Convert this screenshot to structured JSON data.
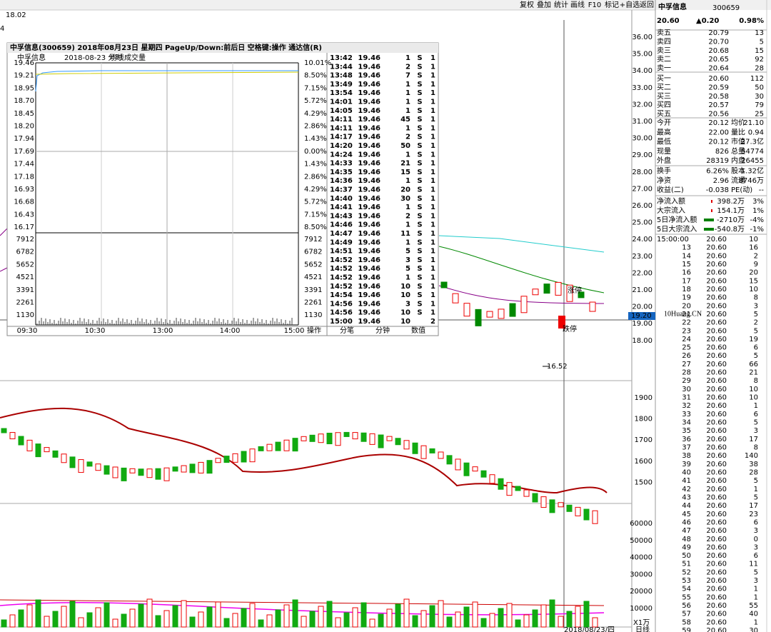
{
  "toolbar": [
    "复权",
    "叠加",
    "统计",
    "画线",
    "F10",
    "标记",
    "+自选",
    "返回"
  ],
  "top_left": {
    "price": "18.02",
    "level": "4"
  },
  "header": {
    "name": "中孚信息",
    "code": "300659",
    "price": "20.60",
    "change": "▲0.20",
    "pct": "0.98%"
  },
  "order_book": [
    [
      "卖五",
      "20.79",
      "13"
    ],
    [
      "卖四",
      "20.70",
      "5"
    ],
    [
      "卖三",
      "20.68",
      "15"
    ],
    [
      "卖二",
      "20.65",
      "92"
    ],
    [
      "卖一",
      "20.64",
      "28"
    ],
    [
      "买一",
      "20.60",
      "112"
    ],
    [
      "买二",
      "20.59",
      "50"
    ],
    [
      "买三",
      "20.58",
      "30"
    ],
    [
      "买四",
      "20.57",
      "79"
    ],
    [
      "买五",
      "20.56",
      "25"
    ]
  ],
  "stats": [
    [
      "今开",
      "20.12",
      "均价",
      "21.10"
    ],
    [
      "最高",
      "22.00",
      "量比",
      "0.94"
    ],
    [
      "最低",
      "20.12",
      "市值",
      "27.3亿"
    ],
    [
      "现量",
      "826",
      "总量",
      "54774"
    ],
    [
      "外盘",
      "28319",
      "内盘",
      "26455"
    ],
    [
      "换手",
      "6.26%",
      "股本",
      "1.32亿"
    ],
    [
      "净资",
      "2.96",
      "流通",
      "8746万"
    ],
    [
      "收益(二)",
      "-0.038",
      "PE(动)",
      "--"
    ]
  ],
  "flows": [
    [
      "净流入额",
      "398.2万",
      "3%"
    ],
    [
      "大宗流入",
      "154.1万",
      "1%"
    ],
    [
      "5日净流入额",
      "-2710万",
      "-4%"
    ],
    [
      "5日大宗流入",
      "-540.8万",
      "-1%"
    ]
  ],
  "ticks": [
    [
      "15:00:00",
      "20.60",
      "10"
    ],
    [
      "13",
      "20.60",
      "16"
    ],
    [
      "14",
      "20.60",
      "2"
    ],
    [
      "15",
      "20.60",
      "9"
    ],
    [
      "16",
      "20.60",
      "20"
    ],
    [
      "17",
      "20.60",
      "15"
    ],
    [
      "18",
      "20.60",
      "10"
    ],
    [
      "19",
      "20.60",
      "8"
    ],
    [
      "20",
      "20.60",
      "3"
    ],
    [
      "21",
      "20.60",
      "5"
    ],
    [
      "22",
      "20.60",
      "2"
    ],
    [
      "23",
      "20.60",
      "5"
    ],
    [
      "24",
      "20.60",
      "19"
    ],
    [
      "25",
      "20.60",
      "6"
    ],
    [
      "26",
      "20.60",
      "5"
    ],
    [
      "27",
      "20.60",
      "66"
    ],
    [
      "28",
      "20.60",
      "21"
    ],
    [
      "29",
      "20.60",
      "8"
    ],
    [
      "30",
      "20.60",
      "10"
    ],
    [
      "31",
      "20.60",
      "10"
    ],
    [
      "32",
      "20.60",
      "1"
    ],
    [
      "33",
      "20.60",
      "6"
    ],
    [
      "34",
      "20.60",
      "5"
    ],
    [
      "35",
      "20.60",
      "3"
    ],
    [
      "36",
      "20.60",
      "17"
    ],
    [
      "37",
      "20.60",
      "8"
    ],
    [
      "38",
      "20.60",
      "140"
    ],
    [
      "39",
      "20.60",
      "38"
    ],
    [
      "40",
      "20.60",
      "28"
    ],
    [
      "41",
      "20.60",
      "5"
    ],
    [
      "42",
      "20.60",
      "1"
    ],
    [
      "43",
      "20.60",
      "5"
    ],
    [
      "44",
      "20.60",
      "17"
    ],
    [
      "45",
      "20.60",
      "23"
    ],
    [
      "46",
      "20.60",
      "6"
    ],
    [
      "47",
      "20.60",
      "3"
    ],
    [
      "48",
      "20.60",
      "0"
    ],
    [
      "49",
      "20.60",
      "3"
    ],
    [
      "50",
      "20.60",
      "6"
    ],
    [
      "51",
      "20.60",
      "11"
    ],
    [
      "52",
      "20.60",
      "5"
    ],
    [
      "53",
      "20.60",
      "3"
    ],
    [
      "54",
      "20.60",
      "1"
    ],
    [
      "55",
      "20.60",
      "1"
    ],
    [
      "56",
      "20.60",
      "55"
    ],
    [
      "57",
      "20.60",
      "40"
    ],
    [
      "58",
      "20.60",
      "1"
    ],
    [
      "59",
      "20.60",
      "30"
    ]
  ],
  "main_axis": [
    "36.00",
    "35.00",
    "34.00",
    "33.00",
    "32.00",
    "31.00",
    "30.00",
    "29.00",
    "28.00",
    "27.00",
    "26.00",
    "25.00",
    "24.00",
    "23.00",
    "22.00",
    "21.00",
    "20.00",
    "19.00",
    "18.00"
  ],
  "cursor_price": "19.20",
  "index_axis": [
    "1900",
    "1800",
    "1700",
    "1600",
    "1500"
  ],
  "volume_axis": [
    "60000",
    "50000",
    "40000",
    "30000",
    "20000",
    "10000"
  ],
  "volume_unit": "X1万",
  "date_label": "2018/08/23/四",
  "period": "日线",
  "annotations": {
    "low": "16.52",
    "limit_up": "涨停",
    "limit_down": "跌停"
  },
  "watermark": "10Huang.CN",
  "popup": {
    "title": "中孚信息(300659)  2018年08月23日 星期四 PageUp/Down:前后日 空格键:操作 通达信(R)",
    "subtitle": [
      "中孚信息",
      "2018-08-23 分时",
      "均线",
      "成交量"
    ],
    "price_ticks": [
      "19.46",
      "19.21",
      "18.95",
      "18.70",
      "18.45",
      "18.20",
      "17.94",
      "17.69",
      "17.44",
      "17.18",
      "16.93",
      "16.68",
      "16.43",
      "16.17"
    ],
    "pct_ticks": [
      "10.01%",
      "8.50%",
      "7.15%",
      "5.72%",
      "4.29%",
      "2.86%",
      "1.43%",
      "0.00%",
      "1.43%",
      "2.86%",
      "4.29%",
      "5.72%",
      "7.15%",
      "8.50%"
    ],
    "vol_ticks": [
      "7912",
      "6782",
      "5652",
      "4521",
      "3391",
      "2261",
      "1130"
    ],
    "time_ticks": [
      "09:30",
      "10:30",
      "13:00",
      "14:00",
      "15:00"
    ],
    "trades": [
      [
        "13:42",
        "19.46",
        "1",
        "S",
        "1"
      ],
      [
        "13:44",
        "19.46",
        "2",
        "S",
        "1"
      ],
      [
        "13:48",
        "19.46",
        "7",
        "S",
        "1"
      ],
      [
        "13:49",
        "19.46",
        "1",
        "S",
        "1"
      ],
      [
        "13:54",
        "19.46",
        "1",
        "S",
        "1"
      ],
      [
        "14:01",
        "19.46",
        "1",
        "S",
        "1"
      ],
      [
        "14:05",
        "19.46",
        "1",
        "S",
        "1"
      ],
      [
        "14:11",
        "19.46",
        "45",
        "S",
        "1"
      ],
      [
        "14:11",
        "19.46",
        "1",
        "S",
        "1"
      ],
      [
        "14:17",
        "19.46",
        "2",
        "S",
        "1"
      ],
      [
        "14:20",
        "19.46",
        "50",
        "S",
        "1"
      ],
      [
        "14:24",
        "19.46",
        "1",
        "S",
        "1"
      ],
      [
        "14:33",
        "19.46",
        "21",
        "S",
        "1"
      ],
      [
        "14:35",
        "19.46",
        "15",
        "S",
        "1"
      ],
      [
        "14:36",
        "19.46",
        "1",
        "S",
        "1"
      ],
      [
        "14:37",
        "19.46",
        "20",
        "S",
        "1"
      ],
      [
        "14:40",
        "19.46",
        "30",
        "S",
        "1"
      ],
      [
        "14:41",
        "19.46",
        "1",
        "S",
        "1"
      ],
      [
        "14:43",
        "19.46",
        "2",
        "S",
        "1"
      ],
      [
        "14:46",
        "19.46",
        "1",
        "S",
        "1"
      ],
      [
        "14:47",
        "19.46",
        "11",
        "S",
        "1"
      ],
      [
        "14:49",
        "19.46",
        "1",
        "S",
        "1"
      ],
      [
        "14:51",
        "19.46",
        "5",
        "S",
        "1"
      ],
      [
        "14:52",
        "19.46",
        "3",
        "S",
        "1"
      ],
      [
        "14:52",
        "19.46",
        "5",
        "S",
        "1"
      ],
      [
        "14:52",
        "19.46",
        "1",
        "S",
        "1"
      ],
      [
        "14:52",
        "19.46",
        "10",
        "S",
        "1"
      ],
      [
        "14:54",
        "19.46",
        "10",
        "S",
        "1"
      ],
      [
        "14:56",
        "19.46",
        "3",
        "S",
        "1"
      ],
      [
        "14:56",
        "19.46",
        "10",
        "S",
        "1"
      ],
      [
        "15:00",
        "19.46",
        "10",
        "2"
      ]
    ],
    "tabs": [
      "操作",
      "分笔",
      "分钟",
      "数值"
    ]
  }
}
